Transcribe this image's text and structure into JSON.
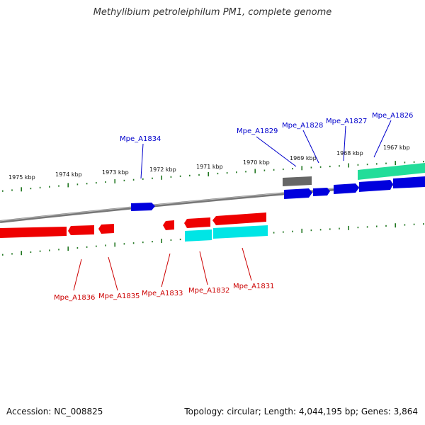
{
  "title": "Methylibium petroleiphilum PM1, complete genome",
  "footer": {
    "accession": "Accession: NC_008825",
    "summary": "Topology: circular; Length: 4,044,195 bp; Genes: 3,864"
  },
  "colors": {
    "forward_gene": "#0000dd",
    "reverse_gene": "#ee0000",
    "forward_label": "#0000cc",
    "reverse_label": "#cc0000",
    "tick": "#227722",
    "backbone": "#888888",
    "rna_cyan": "#00e5e5",
    "feature_teal": "#22dd99",
    "feature_gray": "#666666"
  },
  "scale": {
    "kbp_labels": [
      "1975 kbp",
      "1974 kbp",
      "1973 kbp",
      "1972 kbp",
      "1971 kbp",
      "1970 kbp",
      "1969 kbp",
      "1968 kbp",
      "1967 kbp"
    ]
  },
  "genes": {
    "forward_labels": [
      "Mpe_A1834",
      "Mpe_A1829",
      "Mpe_A1828",
      "Mpe_A1827",
      "Mpe_A1826"
    ],
    "reverse_labels": [
      "Mpe_A1836",
      "Mpe_A1835",
      "Mpe_A1833",
      "Mpe_A1832",
      "Mpe_A1831"
    ]
  }
}
